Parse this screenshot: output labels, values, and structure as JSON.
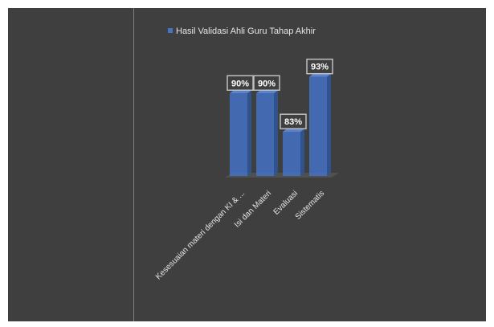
{
  "chart_data": {
    "type": "bar",
    "categories": [
      "Kesesuaian materi dengan KI & ...",
      "Isi dan Materi",
      "Evaluasi",
      "Sistematis"
    ],
    "series": [
      {
        "name": "Hasil Validasi Ahli Guru Tahap Akhir",
        "values": [
          90,
          90,
          83,
          93
        ]
      }
    ],
    "data_labels": [
      "90%",
      "90%",
      "83%",
      "93%"
    ],
    "ylim": [
      75,
      95
    ],
    "grid": false,
    "legend_position": "top",
    "colors": {
      "bar": "#4472c4",
      "background": "#3f3f3f",
      "text": "#e6e6e6"
    }
  }
}
